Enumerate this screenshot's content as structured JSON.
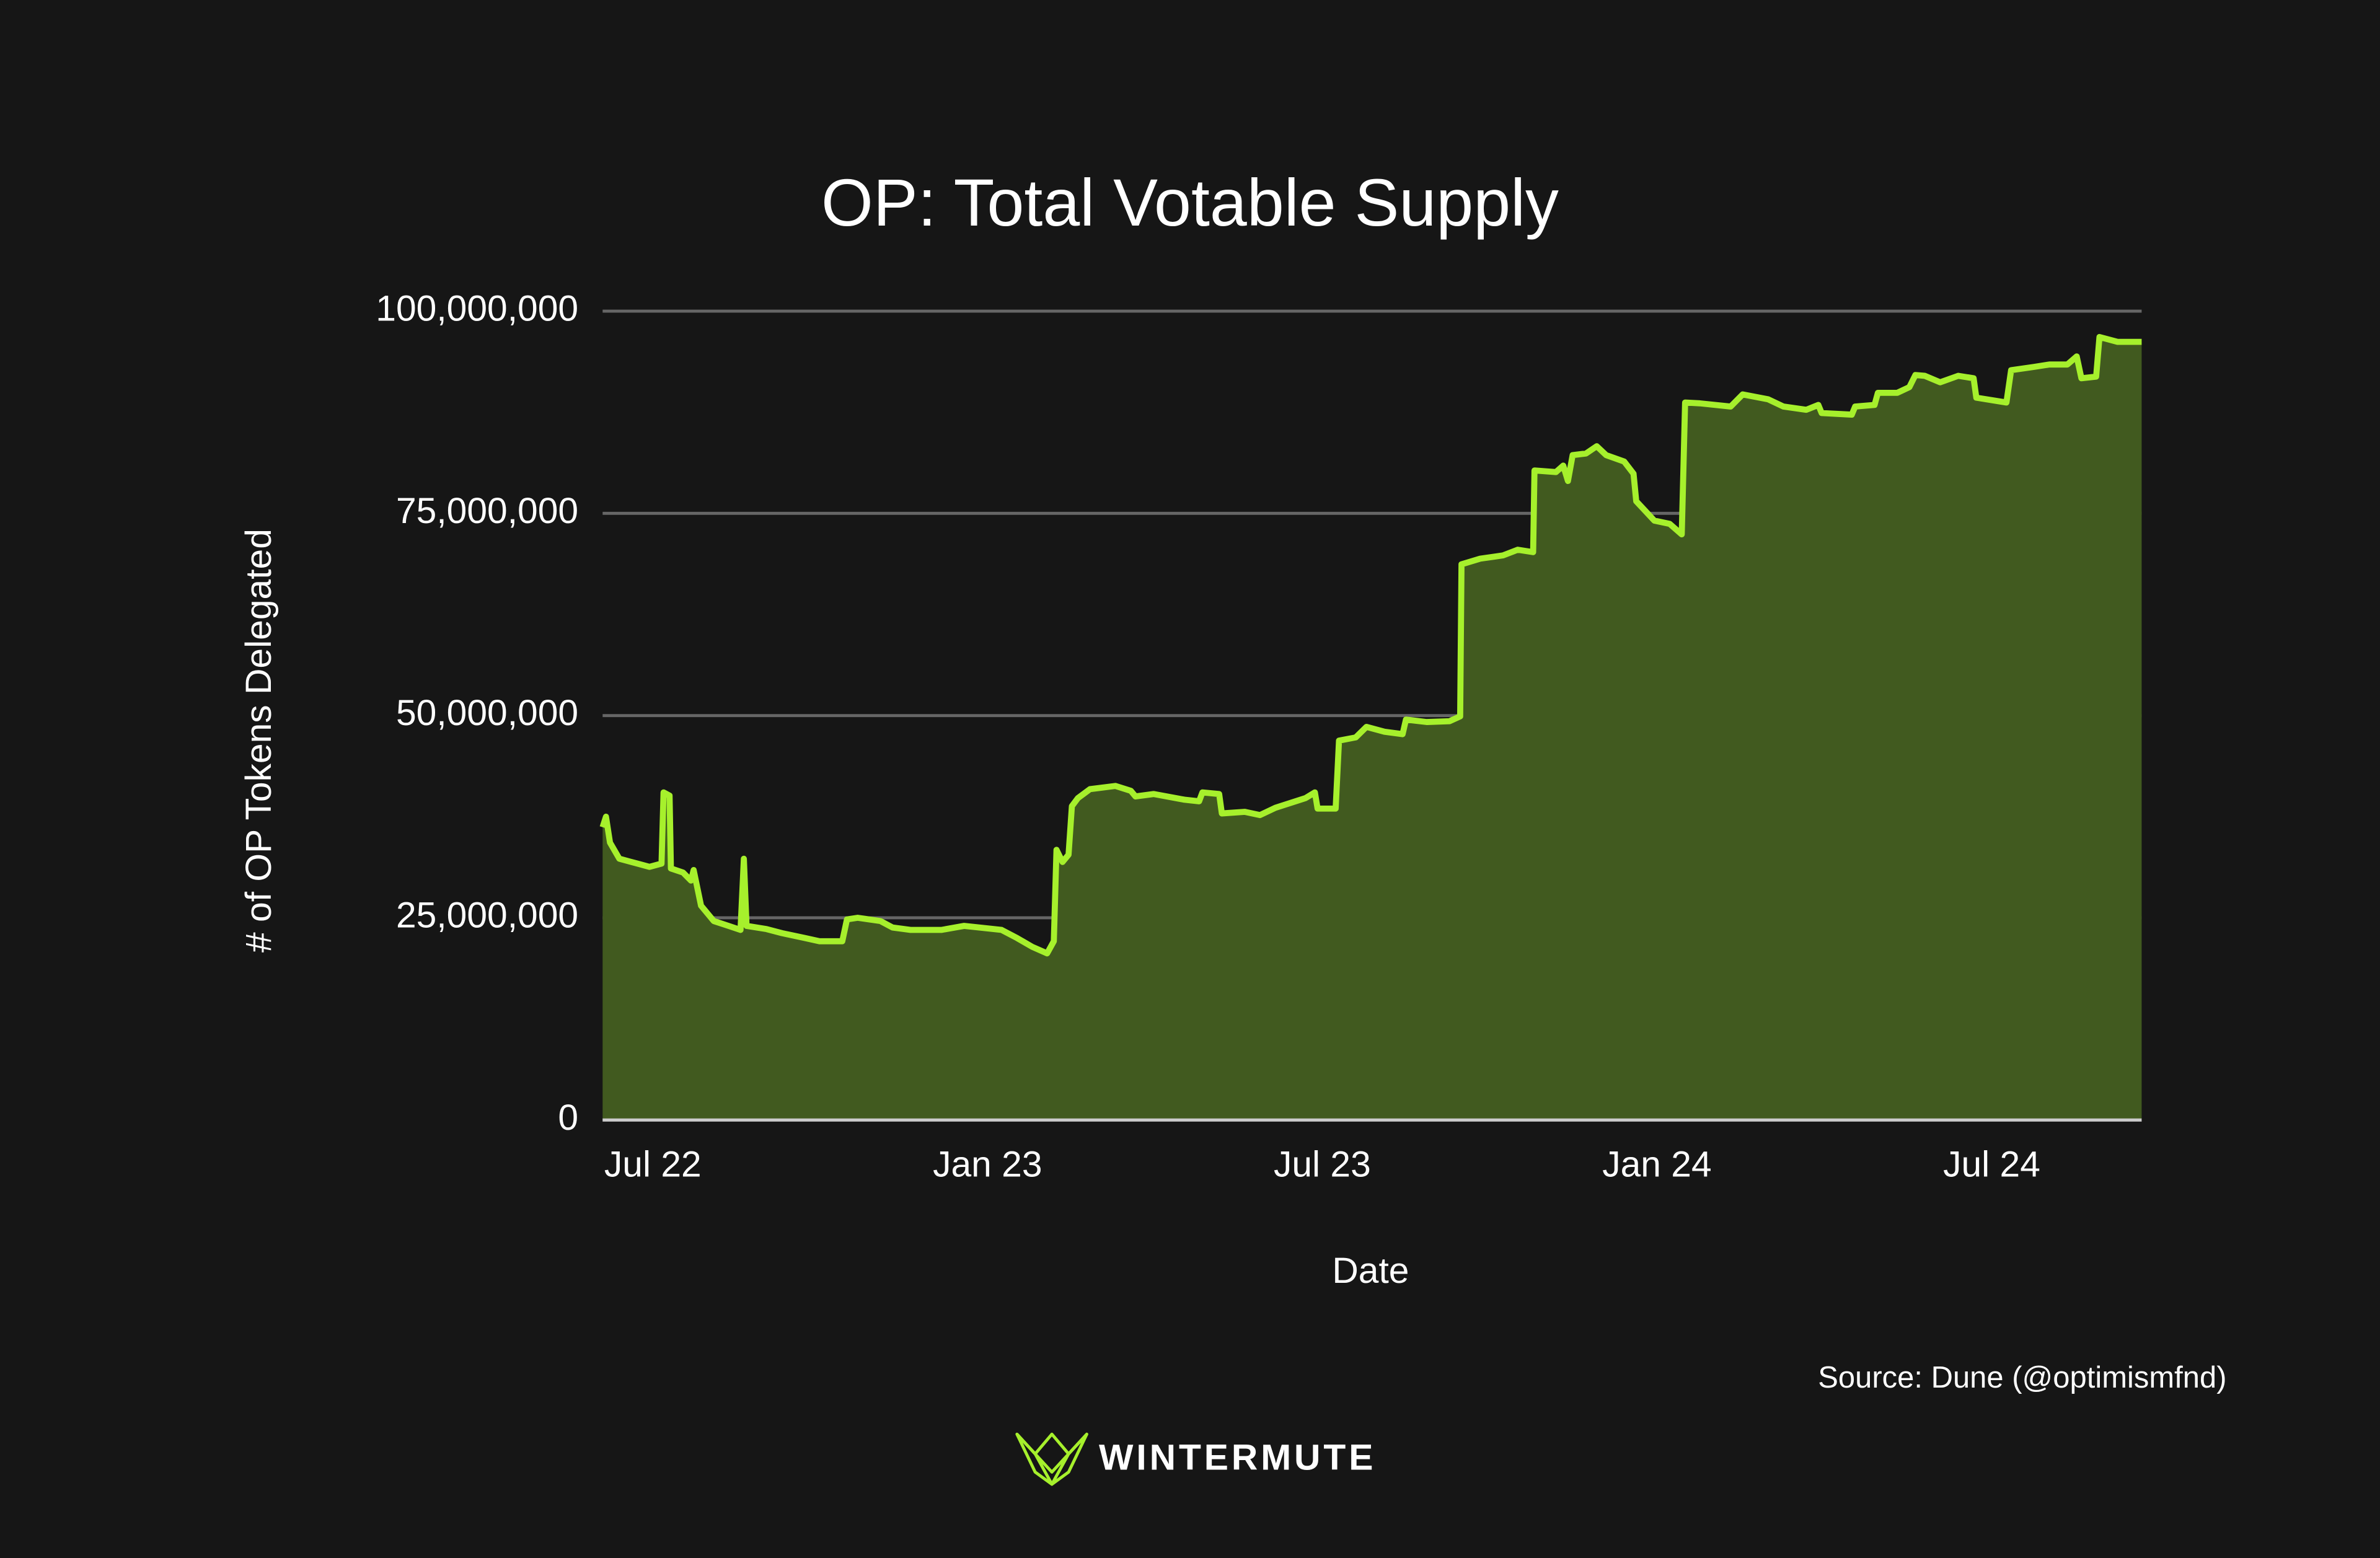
{
  "chart_data": {
    "type": "area",
    "title": "OP: Total Votable Supply",
    "x_label": "Date",
    "y_label": "# of OP Tokens Delegated",
    "source": "Source: Dune (@optimismfnd)",
    "brand": "WINTERMUTE",
    "grid": true,
    "xlim": [
      2022.425,
      2024.724
    ],
    "xticks": [
      {
        "value": 2022.5,
        "label": "Jul 22"
      },
      {
        "value": 2023.0,
        "label": "Jan 23"
      },
      {
        "value": 2023.5,
        "label": "Jul 23"
      },
      {
        "value": 2024.0,
        "label": "Jan 24"
      },
      {
        "value": 2024.5,
        "label": "Jul 24"
      }
    ],
    "ylim": [
      0,
      100000000
    ],
    "yticks": [
      0,
      {
        "value": 25000000,
        "label": "25,000,000"
      },
      {
        "value": 50000000,
        "label": "50,000,000"
      },
      {
        "value": 75000000,
        "label": "75,000,000"
      },
      {
        "value": 100000000,
        "label": "100,000,000"
      }
    ],
    "x": [
      2022.425,
      2022.43,
      2022.436,
      2022.45,
      2022.477,
      2022.495,
      2022.513,
      2022.516,
      2022.525,
      2022.527,
      2022.545,
      2022.557,
      2022.561,
      2022.572,
      2022.591,
      2022.613,
      2022.631,
      2022.636,
      2022.64,
      2022.67,
      2022.693,
      2022.727,
      2022.749,
      2022.783,
      2022.79,
      2022.806,
      2022.84,
      2022.858,
      2022.885,
      2022.931,
      2022.965,
      2023.021,
      2023.044,
      2023.067,
      2023.089,
      2023.099,
      2023.103,
      2023.112,
      2023.121,
      2023.126,
      2023.135,
      2023.153,
      2023.191,
      2023.214,
      2023.221,
      2023.248,
      2023.294,
      2023.316,
      2023.321,
      2023.346,
      2023.35,
      2023.384,
      2023.407,
      2023.43,
      2023.475,
      2023.489,
      2023.493,
      2023.52,
      2023.525,
      2023.55,
      2023.566,
      2023.593,
      2023.62,
      2023.625,
      2023.656,
      2023.69,
      2023.706,
      2023.708,
      2023.736,
      2023.77,
      2023.792,
      2023.815,
      2023.817,
      2023.849,
      2023.86,
      2023.867,
      2023.874,
      2023.894,
      2023.91,
      2023.924,
      2023.951,
      2023.965,
      2023.969,
      2023.996,
      2024.019,
      2024.037,
      2024.042,
      2024.064,
      2024.11,
      2024.128,
      2024.166,
      2024.189,
      2024.223,
      2024.241,
      2024.246,
      2024.291,
      2024.296,
      2024.325,
      2024.33,
      2024.359,
      2024.377,
      2024.386,
      2024.4,
      2024.423,
      2024.45,
      2024.473,
      2024.477,
      2024.522,
      2024.529,
      2024.563,
      2024.586,
      2024.613,
      2024.627,
      2024.634,
      2024.656,
      2024.661,
      2024.688,
      2024.724
    ],
    "series": [
      {
        "name": "Total Votable Supply",
        "color": "#a6f02c",
        "fill": "#415a1f",
        "values": [
          36200000,
          37500000,
          34300000,
          32300000,
          31700000,
          31300000,
          31700000,
          40500000,
          40100000,
          31100000,
          30600000,
          29600000,
          30900000,
          26500000,
          24600000,
          24000000,
          23500000,
          32300000,
          24000000,
          23600000,
          23100000,
          22500000,
          22100000,
          22100000,
          24800000,
          25000000,
          24600000,
          23800000,
          23500000,
          23500000,
          24000000,
          23500000,
          22500000,
          21400000,
          20600000,
          22100000,
          33400000,
          31900000,
          32800000,
          38800000,
          39800000,
          40900000,
          41300000,
          40700000,
          40000000,
          40300000,
          39600000,
          39400000,
          40500000,
          40300000,
          37900000,
          38100000,
          37700000,
          38600000,
          39800000,
          40500000,
          38500000,
          38500000,
          46900000,
          47300000,
          48600000,
          48000000,
          47700000,
          49500000,
          49200000,
          49300000,
          49900000,
          68700000,
          69400000,
          69800000,
          70500000,
          70200000,
          80300000,
          80100000,
          80900000,
          79000000,
          82200000,
          82400000,
          83300000,
          82200000,
          81400000,
          79900000,
          76500000,
          74100000,
          73700000,
          72400000,
          88700000,
          88600000,
          88200000,
          89700000,
          89100000,
          88200000,
          87800000,
          88400000,
          87400000,
          87200000,
          88200000,
          88400000,
          89900000,
          89900000,
          90600000,
          92100000,
          92000000,
          91200000,
          92000000,
          91700000,
          89300000,
          88700000,
          92700000,
          93100000,
          93400000,
          93400000,
          94400000,
          91700000,
          91900000,
          96800000,
          96200000,
          96200000
        ]
      }
    ]
  }
}
